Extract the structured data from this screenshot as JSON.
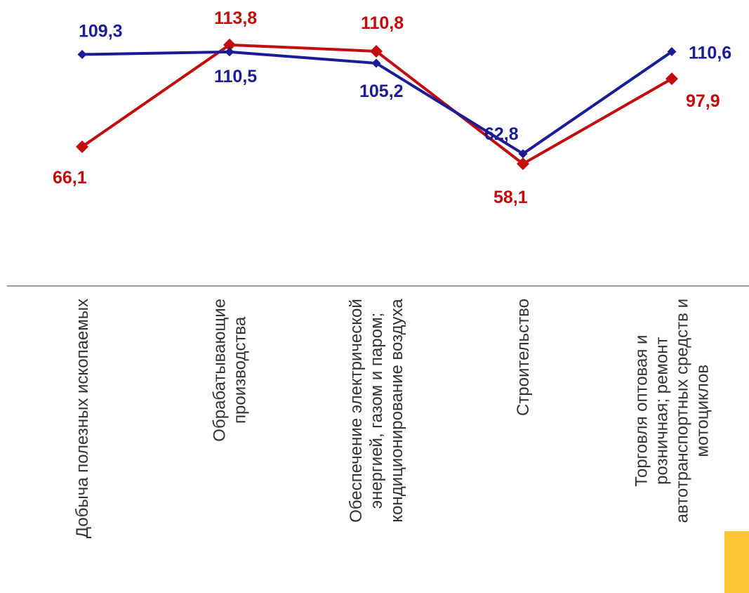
{
  "chart_data": {
    "type": "line",
    "categories": [
      [
        "Добыча полезных ископаемых"
      ],
      [
        "Обрабатывающие",
        "производства"
      ],
      [
        "Обеспечение электрической",
        "энергией, газом и паром;",
        "кондиционирование воздуха"
      ],
      [
        "Строительство"
      ],
      [
        "Торговля оптовая и",
        "розничная; ремонт",
        "автотранспортных средств и",
        "мотоциклов"
      ]
    ],
    "series": [
      {
        "color": "#1b1c96",
        "values": [
          109.3,
          110.5,
          105.2,
          62.8,
          110.6
        ],
        "labels": [
          "109,3",
          "110,5",
          "105,2",
          "62,8",
          "110,6"
        ]
      },
      {
        "color": "#c10d0d",
        "values": [
          66.1,
          113.8,
          110.8,
          58.1,
          97.9
        ],
        "labels": [
          "66,1",
          "113,8",
          "110,8",
          "58,1",
          "97,9"
        ]
      }
    ],
    "title": "",
    "xlabel": "",
    "ylabel": "",
    "grid": false,
    "legend": "none",
    "axis_color": "#999999"
  }
}
